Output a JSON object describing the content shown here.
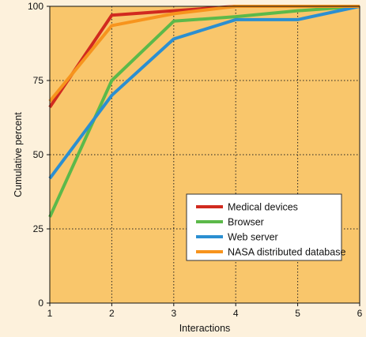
{
  "chart_data": {
    "type": "line",
    "xlabel": "Interactions",
    "ylabel": "Cumulative percent",
    "x": [
      1,
      2,
      3,
      4,
      5,
      6
    ],
    "xlim": [
      1,
      6
    ],
    "ylim": [
      0,
      100
    ],
    "xticks": [
      "1",
      "2",
      "3",
      "4",
      "5",
      "6"
    ],
    "yticks": [
      "0",
      "25",
      "50",
      "75",
      "100"
    ],
    "grid": true,
    "legend_position": "bottom-right",
    "plot_background": "#f9c66b",
    "page_background": "#fdf1dc",
    "series": [
      {
        "name": "Medical devices",
        "color": "#d12a1f",
        "values": [
          66,
          97,
          98.5,
          100,
          100,
          100
        ]
      },
      {
        "name": "Browser",
        "color": "#5cb94a",
        "values": [
          29,
          75,
          95,
          96.5,
          98.5,
          100
        ]
      },
      {
        "name": "Web server",
        "color": "#2b8fd1",
        "values": [
          42,
          70,
          89,
          95.5,
          95.5,
          100
        ]
      },
      {
        "name": "NASA distributed database",
        "color": "#f7941d",
        "values": [
          68,
          93.5,
          97.5,
          100,
          100,
          100
        ]
      }
    ]
  }
}
